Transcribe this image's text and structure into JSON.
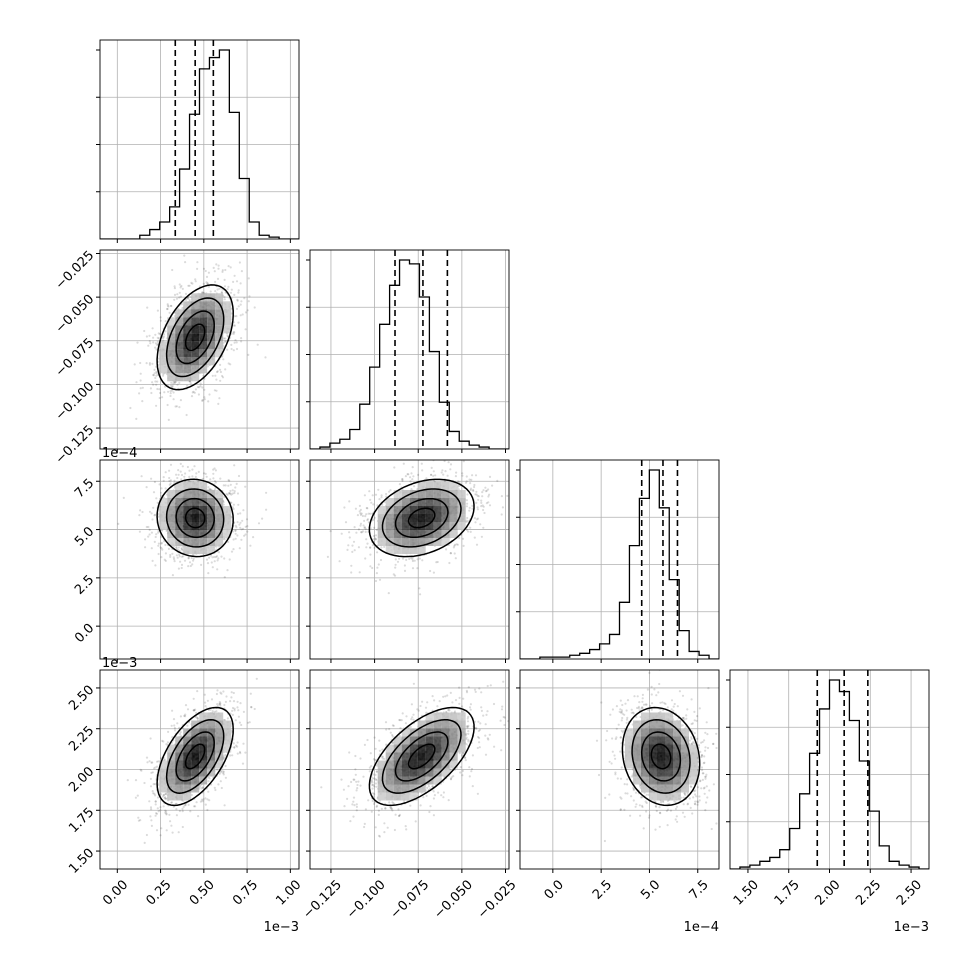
{
  "chart_data": {
    "type": "corner",
    "title": "",
    "grid": true,
    "parameters": [
      {
        "range": [
          -0.1,
          1.05
        ],
        "ticks": [
          0.0,
          0.25,
          0.5,
          0.75,
          1.0
        ],
        "tick_labels": [
          "0.00",
          "0.25",
          "0.50",
          "0.75",
          "1.00"
        ],
        "offset_text": "1e−3",
        "hist": [
          0,
          0,
          0,
          0,
          0.02,
          0.05,
          0.09,
          0.17,
          0.37,
          0.66,
          0.9,
          0.96,
          1.0,
          0.67,
          0.32,
          0.09,
          0.02,
          0.01,
          0,
          0
        ],
        "quantiles": [
          0.335,
          0.45,
          0.555
        ],
        "mean": 0.45,
        "sd": 0.11
      },
      {
        "range": [
          -0.137,
          -0.023
        ],
        "ticks": [
          -0.125,
          -0.1,
          -0.075,
          -0.05,
          -0.025
        ],
        "tick_labels": [
          "−0.125",
          "−0.100",
          "−0.075",
          "−0.050",
          "−0.025"
        ],
        "offset_text": "",
        "hist": [
          0,
          0.01,
          0.03,
          0.05,
          0.1,
          0.23,
          0.42,
          0.64,
          0.84,
          0.97,
          0.95,
          0.78,
          0.5,
          0.24,
          0.09,
          0.04,
          0.02,
          0.01,
          0,
          0
        ],
        "quantiles": [
          -0.0883,
          -0.0723,
          -0.0583
        ],
        "mean": -0.073,
        "sd": 0.015
      },
      {
        "range": [
          -1.7,
          8.6
        ],
        "ticks": [
          0.0,
          2.5,
          5.0,
          7.5
        ],
        "tick_labels": [
          "0.0",
          "2.5",
          "5.0",
          "7.5"
        ],
        "offset_text": "1e−4",
        "hist": [
          0,
          0,
          0.01,
          0.01,
          0.01,
          0.02,
          0.03,
          0.05,
          0.08,
          0.13,
          0.3,
          0.6,
          0.85,
          1.0,
          0.8,
          0.42,
          0.15,
          0.04,
          0.02,
          0
        ],
        "quantiles": [
          4.6,
          5.7,
          6.45
        ],
        "mean": 5.6,
        "sd": 1.0
      },
      {
        "range": [
          1.39,
          2.61
        ],
        "ticks": [
          1.5,
          1.75,
          2.0,
          2.25,
          2.5
        ],
        "tick_labels": [
          "1.50",
          "1.75",
          "2.00",
          "2.25",
          "2.50"
        ],
        "offset_text": "1e−3",
        "hist": [
          0,
          0.01,
          0.02,
          0.04,
          0.06,
          0.1,
          0.21,
          0.39,
          0.6,
          0.83,
          0.98,
          0.92,
          0.77,
          0.56,
          0.3,
          0.12,
          0.04,
          0.02,
          0.01,
          0
        ],
        "quantiles": [
          1.925,
          2.09,
          2.235
        ],
        "mean": 2.08,
        "sd": 0.15
      }
    ],
    "correlations": [
      [
        1.0,
        0.45,
        -0.05,
        0.55
      ],
      [
        0.45,
        1.0,
        0.3,
        0.6
      ],
      [
        -0.05,
        0.3,
        1.0,
        -0.15
      ],
      [
        0.55,
        0.6,
        -0.15,
        1.0
      ]
    ]
  }
}
